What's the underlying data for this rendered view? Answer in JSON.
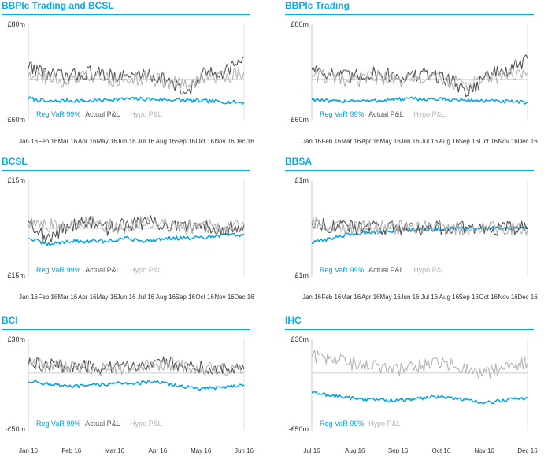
{
  "colors": {
    "reg_var": "#00a3e0",
    "actual": "#555555",
    "hypo": "#b4b4b4",
    "title": "#00aeef"
  },
  "chart_data": [
    {
      "type": "line",
      "title": "BBPlc Trading and BCSL",
      "ymax_label": "£80m",
      "ymin_label": "-£60m",
      "ylim": [
        -60,
        80
      ],
      "x_ticks": [
        "Jan 16",
        "Feb 16",
        "Mar 16",
        "Apr 16",
        "May 16",
        "Jun 16",
        "Jul 16",
        "Aug 16",
        "Sep 16",
        "Oct 16",
        "Nov 16",
        "Dec 16"
      ],
      "legend": [
        "Reg VaR 99%",
        "Actual P&L",
        "Hypo P&L"
      ],
      "series": [
        {
          "name": "Reg VaR 99%",
          "values": [
            -27,
            -32,
            -30,
            -31,
            -29,
            -28,
            -28,
            -29,
            -30,
            -31,
            -32,
            -33
          ]
        },
        {
          "name": "Actual P&L",
          "values": [
            20,
            8,
            3,
            10,
            6,
            4,
            8,
            0,
            -20,
            8,
            12,
            30
          ]
        },
        {
          "name": "Hypo P&L",
          "values": [
            10,
            2,
            -5,
            5,
            0,
            -2,
            3,
            -3,
            -8,
            2,
            5,
            10
          ]
        }
      ]
    },
    {
      "type": "line",
      "title": "BBPlc Trading",
      "ymax_label": "£80m",
      "ymin_label": "-£60m",
      "ylim": [
        -60,
        80
      ],
      "x_ticks": [
        "Jan 16",
        "Feb 16",
        "Mar 16",
        "Apr 16",
        "May 16",
        "Jun 16",
        "Jul 16",
        "Aug 16",
        "Sep 16",
        "Oct 16",
        "Nov 16",
        "Dec 16"
      ],
      "legend": [
        "Reg VaR 99%",
        "Actual P&L",
        "Hypo P&L"
      ],
      "series": [
        {
          "name": "Reg VaR 99%",
          "values": [
            -28,
            -32,
            -30,
            -31,
            -29,
            -28,
            -28,
            -29,
            -30,
            -31,
            -32,
            -33
          ]
        },
        {
          "name": "Actual P&L",
          "values": [
            18,
            8,
            3,
            9,
            6,
            4,
            8,
            0,
            -18,
            8,
            12,
            28
          ]
        },
        {
          "name": "Hypo P&L",
          "values": [
            8,
            2,
            -5,
            5,
            0,
            -2,
            3,
            -3,
            -8,
            2,
            5,
            8
          ]
        }
      ]
    },
    {
      "type": "line",
      "title": "BCSL",
      "ymax_label": "£15m",
      "ymin_label": "-£15m",
      "ylim": [
        -15,
        15
      ],
      "x_ticks": [
        "Jan 16",
        "Feb 16",
        "Mar 16",
        "Apr 16",
        "May 16",
        "Jun 16",
        "Jul 16",
        "Aug 16",
        "Sep 16",
        "Oct 16",
        "Nov 16",
        "Dec 16"
      ],
      "legend": [
        "Reg VaR 99%",
        "Actual P&L",
        "Hypo P&L"
      ],
      "series": [
        {
          "name": "Reg VaR 99%",
          "values": [
            -3,
            -5,
            -4,
            -4,
            -4,
            -3,
            -4,
            -3,
            -3,
            -3,
            -2,
            -2
          ]
        },
        {
          "name": "Actual P&L",
          "values": [
            3,
            -4,
            1,
            2,
            0,
            1,
            2,
            1,
            0,
            1,
            0,
            1
          ]
        },
        {
          "name": "Hypo P&L",
          "values": [
            2,
            1,
            0,
            2,
            1,
            0,
            2,
            1,
            0,
            1,
            0,
            1
          ]
        }
      ]
    },
    {
      "type": "line",
      "title": "BBSA",
      "ymax_label": "£1m",
      "ymin_label": "-£1m",
      "ylim": [
        -1,
        1
      ],
      "x_ticks": [
        "Jan 16",
        "Feb 16",
        "Mar 16",
        "Apr 16",
        "May 16",
        "Jun 16",
        "Jul 16",
        "Aug 16",
        "Sep 16",
        "Oct 16",
        "Nov 16",
        "Dec 16"
      ],
      "legend": [
        "Reg VaR 99%",
        "Actual P&L",
        "Hypo P&L"
      ],
      "series": [
        {
          "name": "Reg VaR 99%",
          "values": [
            -0.3,
            -0.2,
            -0.12,
            -0.08,
            -0.05,
            -0.03,
            -0.02,
            -0.01,
            0,
            0,
            0,
            0
          ]
        },
        {
          "name": "Actual P&L",
          "values": [
            0.15,
            0.05,
            0.02,
            0.02,
            0.01,
            0.01,
            0.01,
            0,
            0,
            0,
            0,
            0
          ]
        },
        {
          "name": "Hypo P&L",
          "values": [
            0.1,
            0.03,
            0.02,
            0.02,
            0.01,
            0.01,
            0,
            0,
            0,
            0,
            0,
            0
          ]
        }
      ]
    },
    {
      "type": "line",
      "title": "BCI",
      "ymax_label": "£30m",
      "ymin_label": "-£50m",
      "ylim": [
        -50,
        30
      ],
      "x_ticks": [
        "Jan 16",
        "Feb 16",
        "Mar 16",
        "Apr 16",
        "May 16",
        "Jun 16"
      ],
      "legend": [
        "Reg VaR 99%",
        "Actual P&L",
        "Hypo P&L"
      ],
      "series": [
        {
          "name": "Reg VaR 99%",
          "values": [
            -7,
            -12,
            -9,
            -8,
            -14,
            -10
          ]
        },
        {
          "name": "Actual P&L",
          "values": [
            8,
            6,
            4,
            10,
            5,
            4
          ]
        },
        {
          "name": "Hypo P&L",
          "values": [
            7,
            5,
            3,
            8,
            4,
            3
          ]
        }
      ]
    },
    {
      "type": "line",
      "title": "IHC",
      "ymax_label": "£30m",
      "ymin_label": "-£50m",
      "ylim": [
        -50,
        30
      ],
      "x_ticks": [
        "Jul 16",
        "Aug 16",
        "Sep 16",
        "Oct 16",
        "Nov 16",
        "Dec 16"
      ],
      "legend": [
        "Reg VaR 99%",
        "Hypo P&L"
      ],
      "series": [
        {
          "name": "Reg VaR 99%",
          "values": [
            -17,
            -22,
            -24,
            -20,
            -26,
            -21
          ]
        },
        {
          "name": "Hypo P&L",
          "values": [
            15,
            8,
            3,
            9,
            0,
            10
          ]
        }
      ]
    }
  ]
}
